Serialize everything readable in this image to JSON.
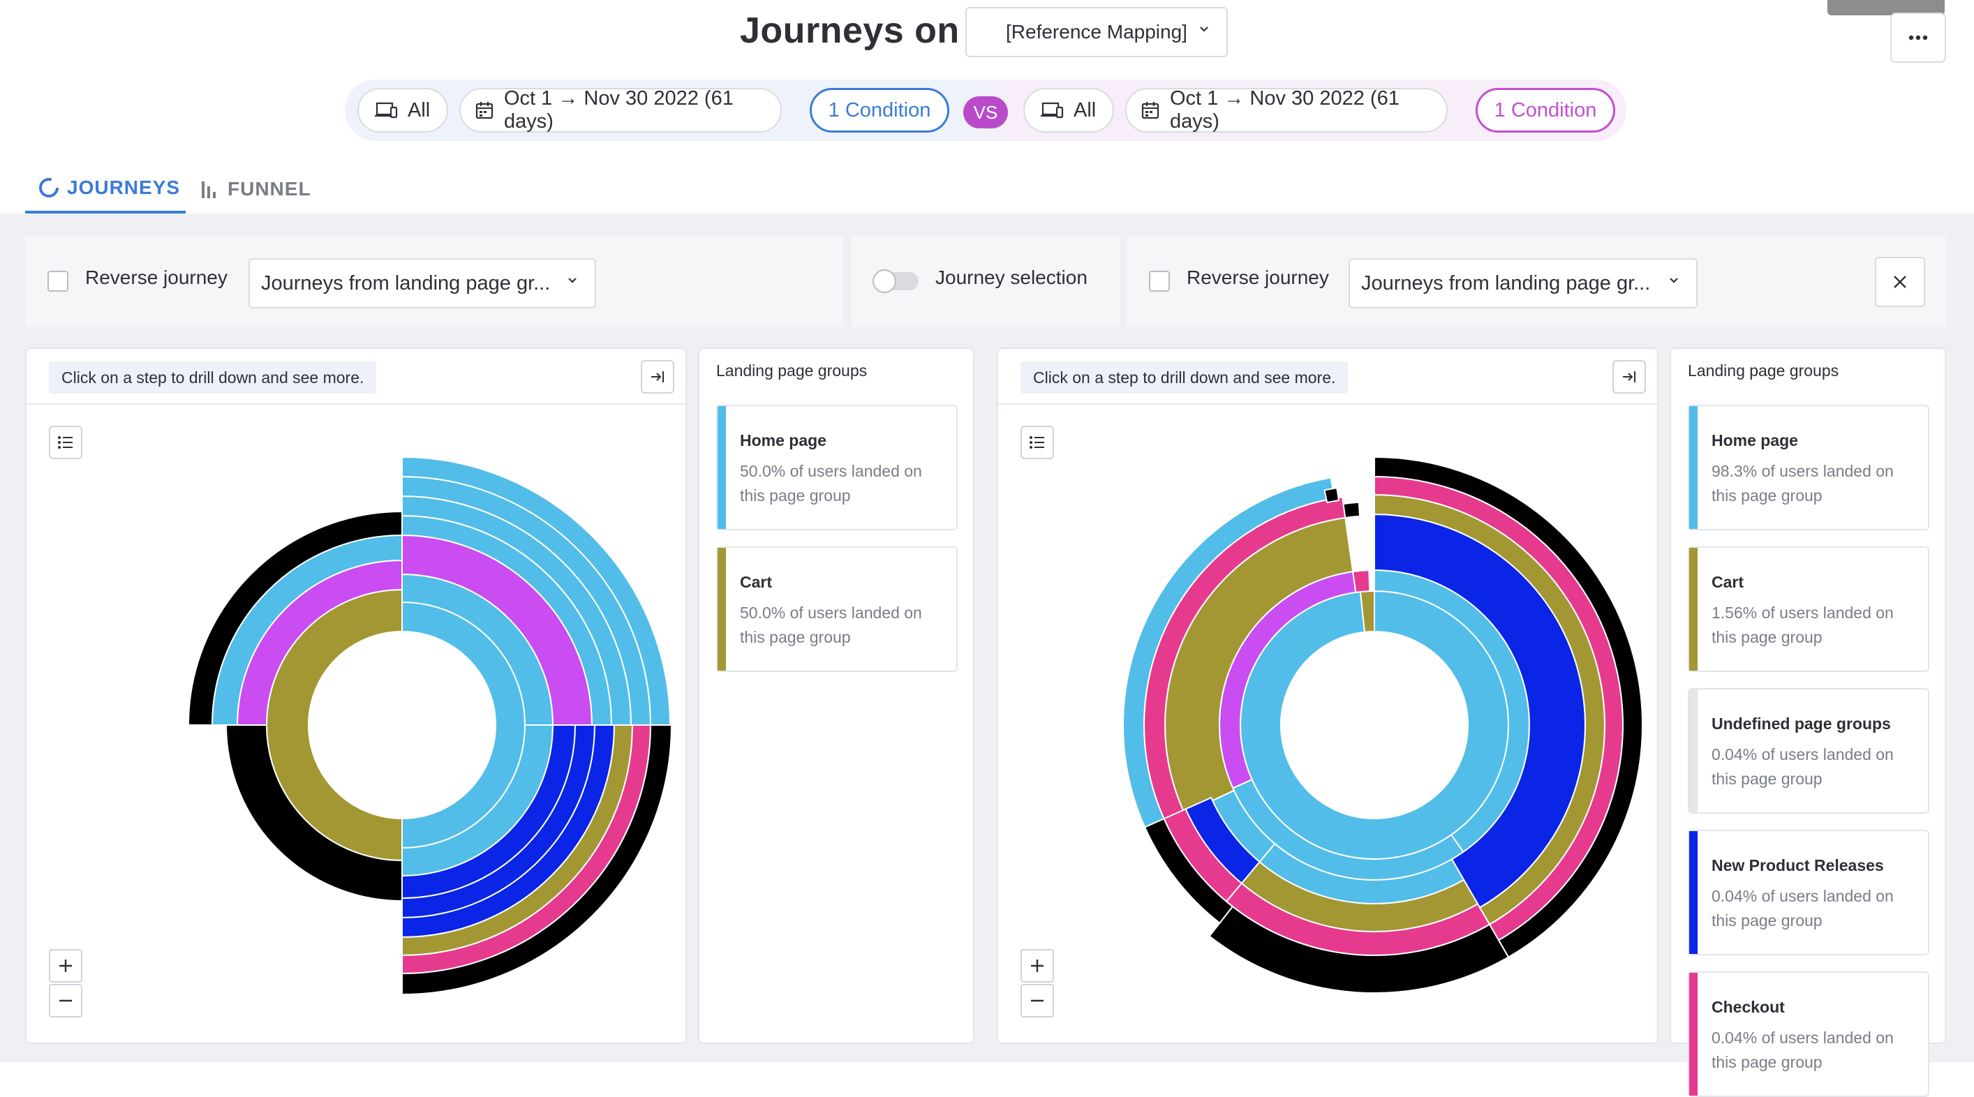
{
  "header": {
    "title": "Journeys on",
    "reference_select": "[Reference Mapping]"
  },
  "filters": {
    "left": {
      "device": "All",
      "date_range": "Oct 1 → Nov 30 2022 (61 days)",
      "condition": "1 Condition"
    },
    "vs": "VS",
    "right": {
      "device": "All",
      "date_range": "Oct 1 → Nov 30 2022 (61 days)",
      "condition": "1 Condition"
    }
  },
  "tabs": [
    {
      "label": "JOURNEYS",
      "icon": "journeys-ring-icon",
      "active": true
    },
    {
      "label": "FUNNEL",
      "icon": "bar-chart-icon",
      "active": false
    }
  ],
  "controls": {
    "left": {
      "reverse_label": "Reverse journey",
      "journey_select": "Journeys from landing page gr..."
    },
    "middle": {
      "toggle_label": "Journey selection"
    },
    "right": {
      "reverse_label": "Reverse journey",
      "journey_select": "Journeys from landing page gr..."
    }
  },
  "panels": {
    "left": {
      "hint": "Click on a step to drill down and see more.",
      "legend_title": "Landing page groups",
      "legend": [
        {
          "name": "Home page",
          "desc": "50.0% of users landed on this page group",
          "color": "#52bde8"
        },
        {
          "name": "Cart",
          "desc": "50.0% of users landed on this page group",
          "color": "#a29733"
        }
      ]
    },
    "right": {
      "hint": "Click on a step to drill down and see more.",
      "legend_title": "Landing page groups",
      "legend": [
        {
          "name": "Home page",
          "desc": "98.3% of users landed on this page group",
          "color": "#52bde8"
        },
        {
          "name": "Cart",
          "desc": "1.56% of users landed on this page group",
          "color": "#a29733"
        },
        {
          "name": "Undefined page groups",
          "desc": "0.04% of users landed on this page group",
          "color": "#e6e6e6"
        },
        {
          "name": "New Product Releases",
          "desc": "0.04% of users landed on this page group",
          "color": "#0a25e6"
        },
        {
          "name": "Checkout",
          "desc": "0.04% of users landed on this page group",
          "color": "#e63a8f"
        }
      ]
    }
  },
  "colors": {
    "home": "#52bde8",
    "cart": "#a29733",
    "purple": "#c94df0",
    "blue": "#0a25e6",
    "pink": "#e63a8f",
    "black": "#000000",
    "accent": "#3a7bd5"
  }
}
